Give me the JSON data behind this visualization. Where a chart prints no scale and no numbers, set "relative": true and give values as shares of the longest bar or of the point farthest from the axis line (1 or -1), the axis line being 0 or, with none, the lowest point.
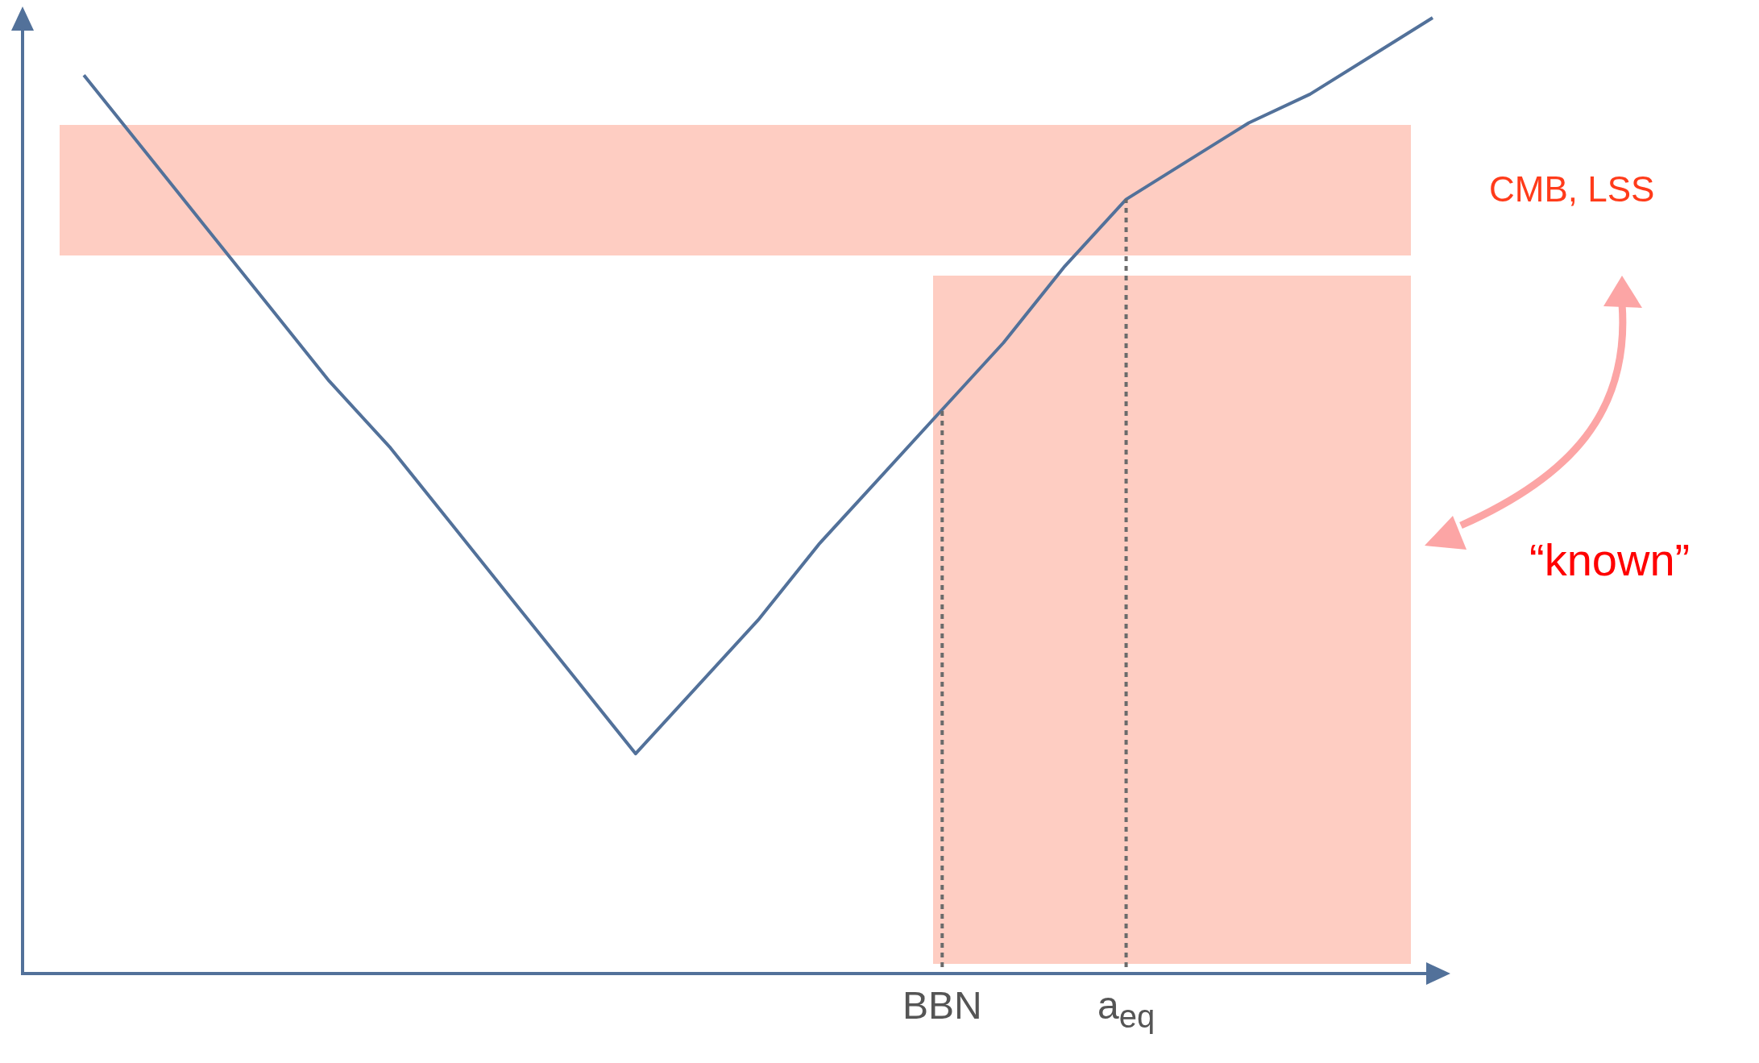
{
  "chart_data": {
    "type": "line",
    "relative": true,
    "tick_labels": "x",
    "grid": false,
    "legend": false,
    "marker": "none",
    "categories": [
      null,
      null,
      null,
      null,
      null,
      null,
      null,
      null,
      null,
      null,
      null,
      null,
      null,
      null,
      null,
      "BBN",
      null,
      null,
      "a$_{eq}$",
      null,
      null,
      null,
      null,
      null
    ],
    "series": [
      {
        "color": "#52719a",
        "values": [
          null,
          0.94,
          0.86,
          0.78,
          0.7,
          0.62,
          0.55,
          0.47,
          0.39,
          0.31,
          0.23,
          0.3,
          0.37,
          0.45,
          0.52,
          0.59,
          0.66,
          0.74,
          0.81,
          0.85,
          0.89,
          0.92,
          0.96,
          1.0
        ]
      }
    ],
    "ref_lines": [
      {
        "axis": "x",
        "value": "BBN",
        "color": "#6b6b6b",
        "line_style": "dotted"
      },
      {
        "axis": "x",
        "value": "a$_{eq}$",
        "color": "#6b6b6b",
        "line_style": "dotted"
      }
    ],
    "annotations": [
      "CMB, LSS",
      "“known”"
    ]
  }
}
